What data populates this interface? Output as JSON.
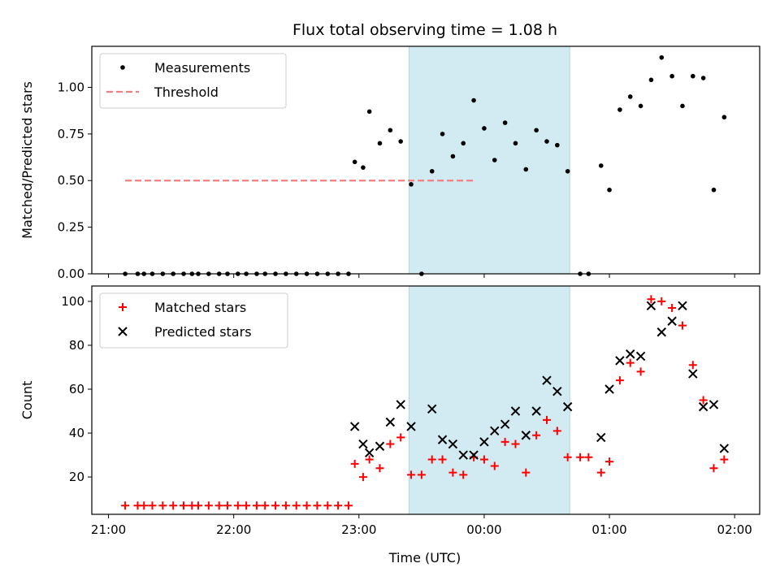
{
  "figure": {
    "title": "Flux total observing time = 1.08 h",
    "xlabel": "Time (UTC)",
    "x_ticks": [
      "21:00",
      "22:00",
      "23:00",
      "00:00",
      "01:00",
      "02:00"
    ],
    "shaded_interval": [
      "23:24",
      "00:41"
    ],
    "shade_color": "#add8e6"
  },
  "chart_data": [
    {
      "type": "scatter",
      "ylabel": "Matched/Predicted stars",
      "ylim": [
        0,
        1.22
      ],
      "y_ticks": [
        "0.00",
        "0.25",
        "0.50",
        "0.75",
        "1.00"
      ],
      "legend": {
        "placement": "upper-left",
        "entries": [
          "Measurements",
          "Threshold"
        ]
      },
      "threshold": {
        "name": "Threshold",
        "value": 0.5,
        "x_range": [
          "21:08",
          "23:56"
        ],
        "color": "#f08080"
      },
      "series": [
        {
          "name": "Measurements",
          "color": "#000000",
          "points": [
            [
              "21:08",
              0.0
            ],
            [
              "21:14",
              0.0
            ],
            [
              "21:17",
              0.0
            ],
            [
              "21:21",
              0.0
            ],
            [
              "21:26",
              0.0
            ],
            [
              "21:31",
              0.0
            ],
            [
              "21:36",
              0.0
            ],
            [
              "21:40",
              0.0
            ],
            [
              "21:43",
              0.0
            ],
            [
              "21:48",
              0.0
            ],
            [
              "21:53",
              0.0
            ],
            [
              "21:57",
              0.0
            ],
            [
              "22:02",
              0.0
            ],
            [
              "22:06",
              0.0
            ],
            [
              "22:11",
              0.0
            ],
            [
              "22:15",
              0.0
            ],
            [
              "22:20",
              0.0
            ],
            [
              "22:25",
              0.0
            ],
            [
              "22:30",
              0.0
            ],
            [
              "22:35",
              0.0
            ],
            [
              "22:40",
              0.0
            ],
            [
              "22:45",
              0.0
            ],
            [
              "22:50",
              0.0
            ],
            [
              "22:55",
              0.0
            ],
            [
              "22:58",
              0.6
            ],
            [
              "23:02",
              0.57
            ],
            [
              "23:05",
              0.87
            ],
            [
              "23:10",
              0.7
            ],
            [
              "23:15",
              0.77
            ],
            [
              "23:20",
              0.71
            ],
            [
              "23:25",
              0.48
            ],
            [
              "23:30",
              0.0
            ],
            [
              "23:35",
              0.55
            ],
            [
              "23:40",
              0.75
            ],
            [
              "23:45",
              0.63
            ],
            [
              "23:50",
              0.7
            ],
            [
              "23:55",
              0.93
            ],
            [
              "00:00",
              0.78
            ],
            [
              "00:05",
              0.61
            ],
            [
              "00:10",
              0.81
            ],
            [
              "00:15",
              0.7
            ],
            [
              "00:20",
              0.56
            ],
            [
              "00:25",
              0.77
            ],
            [
              "00:30",
              0.71
            ],
            [
              "00:35",
              0.69
            ],
            [
              "00:40",
              0.55
            ],
            [
              "00:46",
              0.0
            ],
            [
              "00:50",
              0.0
            ],
            [
              "00:56",
              0.58
            ],
            [
              "01:00",
              0.45
            ],
            [
              "01:05",
              0.88
            ],
            [
              "01:10",
              0.95
            ],
            [
              "01:15",
              0.9
            ],
            [
              "01:20",
              1.04
            ],
            [
              "01:25",
              1.16
            ],
            [
              "01:30",
              1.06
            ],
            [
              "01:35",
              0.9
            ],
            [
              "01:40",
              1.06
            ],
            [
              "01:45",
              1.05
            ],
            [
              "01:50",
              0.45
            ],
            [
              "01:55",
              0.84
            ]
          ]
        }
      ]
    },
    {
      "type": "scatter",
      "ylabel": "Count",
      "ylim": [
        3,
        107
      ],
      "y_ticks": [
        "20",
        "40",
        "60",
        "80",
        "100"
      ],
      "legend": {
        "placement": "upper-left",
        "entries": [
          "Matched stars",
          "Predicted stars"
        ]
      },
      "series": [
        {
          "name": "Matched stars",
          "marker": "plus",
          "color": "#ff0000",
          "points": [
            [
              "21:08",
              7
            ],
            [
              "21:14",
              7
            ],
            [
              "21:17",
              7
            ],
            [
              "21:21",
              7
            ],
            [
              "21:26",
              7
            ],
            [
              "21:31",
              7
            ],
            [
              "21:36",
              7
            ],
            [
              "21:40",
              7
            ],
            [
              "21:43",
              7
            ],
            [
              "21:48",
              7
            ],
            [
              "21:53",
              7
            ],
            [
              "21:57",
              7
            ],
            [
              "22:02",
              7
            ],
            [
              "22:06",
              7
            ],
            [
              "22:11",
              7
            ],
            [
              "22:15",
              7
            ],
            [
              "22:20",
              7
            ],
            [
              "22:25",
              7
            ],
            [
              "22:30",
              7
            ],
            [
              "22:35",
              7
            ],
            [
              "22:40",
              7
            ],
            [
              "22:45",
              7
            ],
            [
              "22:50",
              7
            ],
            [
              "22:55",
              7
            ],
            [
              "22:58",
              26
            ],
            [
              "23:02",
              20
            ],
            [
              "23:05",
              28
            ],
            [
              "23:10",
              24
            ],
            [
              "23:15",
              35
            ],
            [
              "23:20",
              38
            ],
            [
              "23:25",
              21
            ],
            [
              "23:30",
              21
            ],
            [
              "23:35",
              28
            ],
            [
              "23:40",
              28
            ],
            [
              "23:45",
              22
            ],
            [
              "23:50",
              21
            ],
            [
              "23:55",
              29
            ],
            [
              "00:00",
              28
            ],
            [
              "00:05",
              25
            ],
            [
              "00:10",
              36
            ],
            [
              "00:15",
              35
            ],
            [
              "00:20",
              22
            ],
            [
              "00:25",
              39
            ],
            [
              "00:30",
              46
            ],
            [
              "00:35",
              41
            ],
            [
              "00:40",
              29
            ],
            [
              "00:46",
              29
            ],
            [
              "00:50",
              29
            ],
            [
              "00:56",
              22
            ],
            [
              "01:00",
              27
            ],
            [
              "01:05",
              64
            ],
            [
              "01:10",
              72
            ],
            [
              "01:15",
              68
            ],
            [
              "01:20",
              101
            ],
            [
              "01:25",
              100
            ],
            [
              "01:30",
              97
            ],
            [
              "01:35",
              89
            ],
            [
              "01:40",
              71
            ],
            [
              "01:45",
              55
            ],
            [
              "01:50",
              24
            ],
            [
              "01:55",
              28
            ]
          ]
        },
        {
          "name": "Predicted stars",
          "marker": "x",
          "color": "#000000",
          "points": [
            [
              "22:58",
              43
            ],
            [
              "23:02",
              35
            ],
            [
              "23:05",
              31
            ],
            [
              "23:10",
              34
            ],
            [
              "23:15",
              45
            ],
            [
              "23:20",
              53
            ],
            [
              "23:25",
              43
            ],
            [
              "23:35",
              51
            ],
            [
              "23:40",
              37
            ],
            [
              "23:45",
              35
            ],
            [
              "23:50",
              30
            ],
            [
              "23:55",
              30
            ],
            [
              "00:00",
              36
            ],
            [
              "00:05",
              41
            ],
            [
              "00:10",
              44
            ],
            [
              "00:15",
              50
            ],
            [
              "00:20",
              39
            ],
            [
              "00:25",
              50
            ],
            [
              "00:30",
              64
            ],
            [
              "00:35",
              59
            ],
            [
              "00:40",
              52
            ],
            [
              "00:56",
              38
            ],
            [
              "01:00",
              60
            ],
            [
              "01:05",
              73
            ],
            [
              "01:10",
              76
            ],
            [
              "01:15",
              75
            ],
            [
              "01:20",
              98
            ],
            [
              "01:25",
              86
            ],
            [
              "01:30",
              91
            ],
            [
              "01:35",
              98
            ],
            [
              "01:40",
              67
            ],
            [
              "01:45",
              52
            ],
            [
              "01:50",
              53
            ],
            [
              "01:55",
              33
            ]
          ]
        }
      ]
    }
  ]
}
